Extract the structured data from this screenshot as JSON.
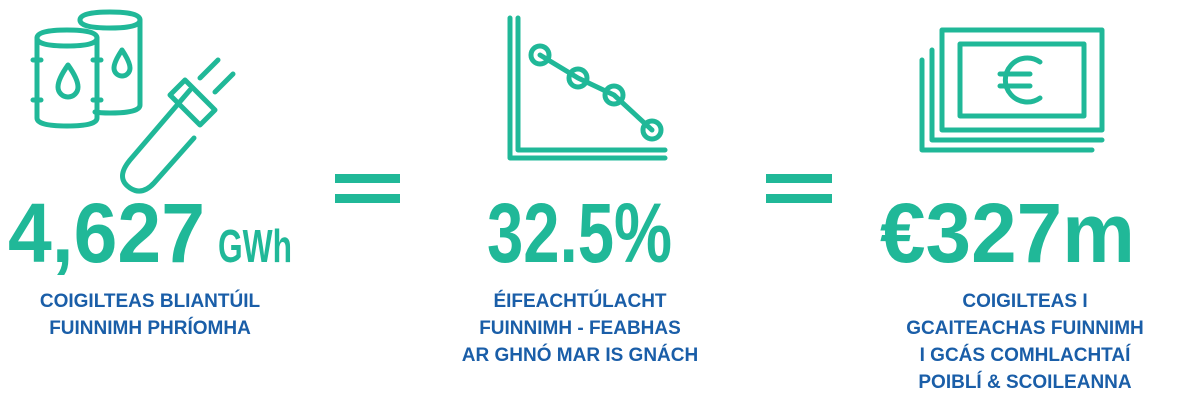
{
  "items": [
    {
      "value": "4,627",
      "unit": "GWh",
      "caption": [
        "COIGILTEAS BLIANTÚIL",
        "FUINNIMH PHRÍOMHA"
      ]
    },
    {
      "value": "32.5%",
      "caption": [
        "ÉIFEACHTÚLACHT",
        "FUINNIMH - FEABHAS",
        "AR GHNÓ MAR IS GNÁCH"
      ]
    },
    {
      "value": "€327m",
      "caption": [
        "COIGILTEAS I",
        "GCAITEACHAS FUINNIMH",
        "I GCÁS COMHLACHTAÍ",
        "POIBLÍ & SCOILEANNA"
      ]
    }
  ]
}
